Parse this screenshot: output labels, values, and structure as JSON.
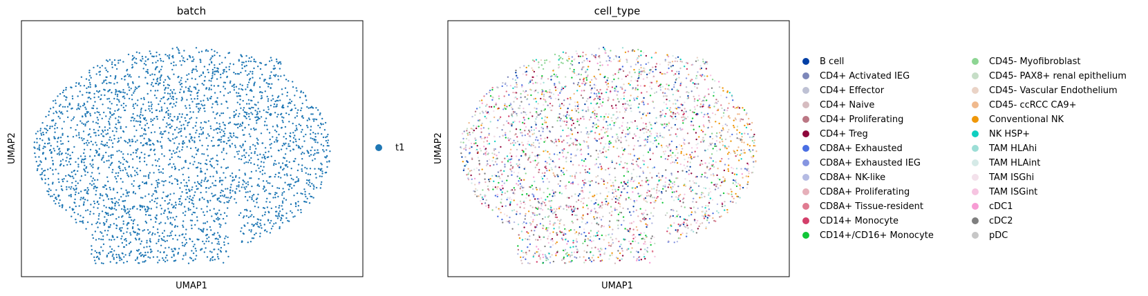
{
  "chart_data": [
    {
      "type": "scatter",
      "title": "batch",
      "xlabel": "UMAP1",
      "ylabel": "UMAP2",
      "ticks": "none",
      "grid": false,
      "legend_position": "right",
      "series": [
        {
          "name": "t1",
          "color": "#1f77b4"
        }
      ]
    },
    {
      "type": "scatter",
      "title": "cell_type",
      "xlabel": "UMAP1",
      "ylabel": "UMAP2",
      "ticks": "none",
      "grid": false,
      "legend_position": "right",
      "series": [
        {
          "name": "B cell",
          "color": "#023fa5"
        },
        {
          "name": "CD4+ Activated IEG",
          "color": "#7d87b9"
        },
        {
          "name": "CD4+ Effector",
          "color": "#bec1d4"
        },
        {
          "name": "CD4+ Naive",
          "color": "#d6bcc0"
        },
        {
          "name": "CD4+ Proliferating",
          "color": "#bb7784"
        },
        {
          "name": "CD4+ Treg",
          "color": "#8e063b"
        },
        {
          "name": "CD8A+ Exhausted",
          "color": "#4a6fe3"
        },
        {
          "name": "CD8A+ Exhausted IEG",
          "color": "#8595e1"
        },
        {
          "name": "CD8A+ NK-like",
          "color": "#b5bbe3"
        },
        {
          "name": "CD8A+ Proliferating",
          "color": "#e6afb9"
        },
        {
          "name": "CD8A+ Tissue-resident",
          "color": "#e07b91"
        },
        {
          "name": "CD14+ Monocyte",
          "color": "#d33f6a"
        },
        {
          "name": "CD14+/CD16+ Monocyte",
          "color": "#11c638"
        },
        {
          "name": "CD45- Myofibroblast",
          "color": "#8dd593"
        },
        {
          "name": "CD45- PAX8+ renal epithelium",
          "color": "#c6dec7"
        },
        {
          "name": "CD45- Vascular Endothelium",
          "color": "#ead3c6"
        },
        {
          "name": "CD45- ccRCC CA9+",
          "color": "#f0b98d"
        },
        {
          "name": "Conventional NK",
          "color": "#ef9708"
        },
        {
          "name": "NK HSP+",
          "color": "#0fcfc0"
        },
        {
          "name": "TAM HLAhi",
          "color": "#9cded6"
        },
        {
          "name": "TAM HLAint",
          "color": "#d5eae7"
        },
        {
          "name": "TAM ISGhi",
          "color": "#f3e1eb"
        },
        {
          "name": "TAM ISGint",
          "color": "#f6c4e1"
        },
        {
          "name": "cDC1",
          "color": "#f79cd4"
        },
        {
          "name": "cDC2",
          "color": "#7f7f7f"
        },
        {
          "name": "pDC",
          "color": "#c7c7c7"
        }
      ]
    }
  ]
}
